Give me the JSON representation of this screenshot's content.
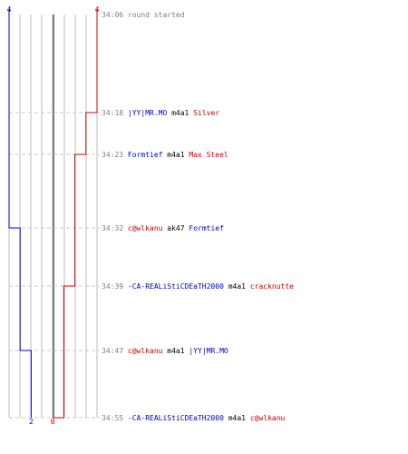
{
  "chart_data": {
    "type": "line",
    "colors": {
      "blue": "#0000cc",
      "red": "#cc0000",
      "time": "#808080",
      "grid": "#bcbcbc",
      "dashed": "#c8c8c8",
      "weapon": "#000000",
      "center": "#777777"
    },
    "score_range": [
      0,
      4
    ],
    "corner_labels": {
      "top_left": "4",
      "top_right": "4",
      "bottom_blue": "2",
      "bottom_red": "0"
    },
    "events": [
      {
        "time": "34:06",
        "killer": "",
        "killer_team": "",
        "weapon": "",
        "victim": "",
        "victim_team": "",
        "text": "round started",
        "blue_alive": 4,
        "red_alive": 4
      },
      {
        "time": "34:18",
        "killer": "|YY|MR.MO",
        "killer_team": "blue",
        "weapon": "m4a1",
        "victim": "Silver",
        "victim_team": "red",
        "text": "",
        "blue_alive": 4,
        "red_alive": 3
      },
      {
        "time": "34:23",
        "killer": "Formtief",
        "killer_team": "blue",
        "weapon": "m4a1",
        "victim": "Max Steel",
        "victim_team": "red",
        "text": "",
        "blue_alive": 4,
        "red_alive": 2
      },
      {
        "time": "34:32",
        "killer": "c@wlkanu",
        "killer_team": "red",
        "weapon": "ak47",
        "victim": "Formtief",
        "victim_team": "blue",
        "text": "",
        "blue_alive": 3,
        "red_alive": 2
      },
      {
        "time": "34:39",
        "killer": "-CA-REALiStiCDEaTH2000",
        "killer_team": "blue",
        "weapon": "m4a1",
        "victim": "cracknutte",
        "victim_team": "red",
        "text": "",
        "blue_alive": 3,
        "red_alive": 1
      },
      {
        "time": "34:47",
        "killer": "c@wlkanu",
        "killer_team": "red",
        "weapon": "m4a1",
        "victim": "|YY|MR.MO",
        "victim_team": "blue",
        "text": "",
        "blue_alive": 2,
        "red_alive": 1
      },
      {
        "time": "34:55",
        "killer": "-CA-REALiStiCDEaTH2000",
        "killer_team": "blue",
        "weapon": "m4a1",
        "victim": "c@wlkanu",
        "victim_team": "red",
        "text": "",
        "blue_alive": 2,
        "red_alive": 0
      }
    ]
  }
}
